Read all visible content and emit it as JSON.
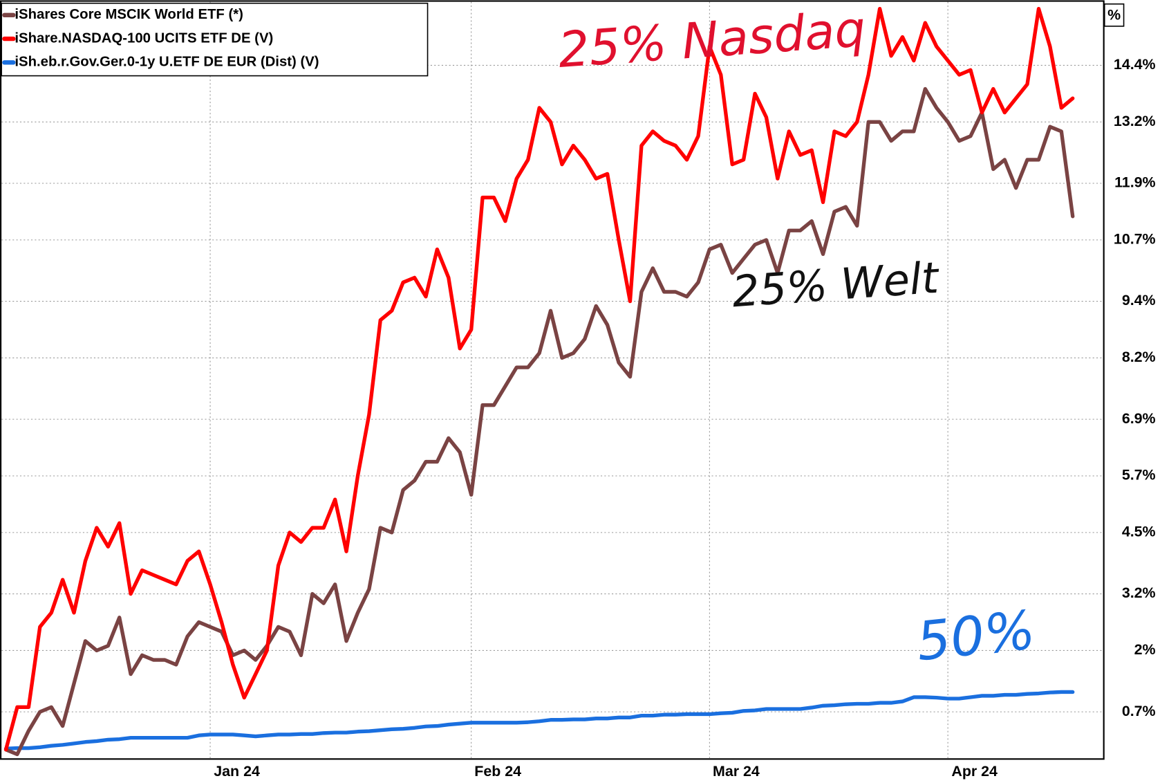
{
  "chart_data": {
    "type": "line",
    "y_axis_label": "%",
    "categories": [
      null,
      null,
      null,
      null,
      null,
      null,
      null,
      null,
      null,
      null,
      null,
      null,
      null,
      null,
      null,
      null,
      null,
      null,
      "Jan 24",
      null,
      null,
      null,
      null,
      null,
      null,
      null,
      null,
      null,
      null,
      null,
      null,
      null,
      null,
      null,
      null,
      null,
      null,
      null,
      null,
      null,
      null,
      "Feb 24",
      null,
      null,
      null,
      null,
      null,
      null,
      null,
      null,
      null,
      null,
      null,
      null,
      null,
      null,
      null,
      null,
      null,
      null,
      null,
      null,
      "Mar 24",
      null,
      null,
      null,
      null,
      null,
      null,
      null,
      null,
      null,
      null,
      null,
      null,
      null,
      null,
      null,
      null,
      null,
      null,
      null,
      null,
      "Apr 24",
      null,
      null,
      null,
      null,
      null,
      null,
      null,
      null,
      null,
      null,
      null
    ],
    "series": [
      {
        "name": "iShares Core MSCIK World ETF (*)",
        "color": "#7a4343",
        "values": [
          -0.1,
          -0.2,
          0.3,
          0.7,
          0.8,
          0.4,
          1.3,
          2.2,
          2.0,
          2.1,
          2.7,
          1.5,
          1.9,
          1.8,
          1.8,
          1.7,
          2.3,
          2.6,
          2.5,
          2.4,
          1.9,
          2.0,
          1.8,
          2.1,
          2.5,
          2.4,
          1.9,
          3.2,
          3.0,
          3.4,
          2.2,
          2.8,
          3.3,
          4.6,
          4.5,
          5.4,
          5.6,
          6.0,
          6.0,
          6.5,
          6.2,
          5.3,
          7.2,
          7.2,
          7.6,
          8.0,
          8.0,
          8.3,
          9.2,
          8.2,
          8.3,
          8.6,
          9.3,
          8.9,
          8.1,
          7.8,
          9.6,
          10.1,
          9.6,
          9.6,
          9.5,
          9.8,
          10.5,
          10.6,
          10.0,
          10.3,
          10.6,
          10.7,
          10.0,
          10.9,
          10.9,
          11.1,
          10.4,
          11.3,
          11.4,
          11.0,
          13.2,
          13.2,
          12.8,
          13.0,
          13.0,
          13.9,
          13.5,
          13.2,
          12.8,
          12.9,
          13.4,
          12.2,
          12.4,
          11.8,
          12.4,
          12.4,
          13.1,
          13.0,
          11.2
        ]
      },
      {
        "name": "iShare.NASDAQ-100 UCITS ETF DE (V)",
        "color": "#ff0000",
        "values": [
          -0.1,
          0.8,
          0.8,
          2.5,
          2.8,
          3.5,
          2.8,
          3.9,
          4.6,
          4.2,
          4.7,
          3.2,
          3.7,
          3.6,
          3.5,
          3.4,
          3.9,
          4.1,
          3.4,
          2.6,
          1.7,
          1.0,
          1.5,
          2.0,
          3.8,
          4.5,
          4.3,
          4.6,
          4.6,
          5.2,
          4.1,
          5.7,
          7.0,
          9.0,
          9.2,
          9.8,
          9.9,
          9.5,
          10.5,
          9.9,
          8.4,
          8.8,
          11.6,
          11.6,
          11.1,
          12.0,
          12.4,
          13.5,
          13.2,
          12.3,
          12.7,
          12.4,
          12.0,
          12.1,
          10.7,
          9.4,
          12.7,
          13.0,
          12.8,
          12.7,
          12.4,
          12.9,
          14.8,
          14.2,
          12.3,
          12.4,
          13.8,
          13.3,
          12.0,
          13.0,
          12.5,
          12.6,
          11.5,
          13.0,
          12.9,
          13.2,
          14.2,
          15.6,
          14.6,
          15.0,
          14.5,
          15.3,
          14.8,
          14.5,
          14.2,
          14.3,
          13.4,
          13.9,
          13.4,
          13.7,
          14.0,
          15.6,
          14.8,
          13.5,
          13.7
        ]
      },
      {
        "name": "iSh.eb.r.Gov.Ger.0-1y U.ETF DE EUR (Dist) (V)",
        "color": "#1a6fdf",
        "values": [
          -0.08,
          -0.07,
          -0.07,
          -0.05,
          -0.02,
          0.0,
          0.03,
          0.06,
          0.08,
          0.11,
          0.12,
          0.15,
          0.15,
          0.15,
          0.15,
          0.15,
          0.15,
          0.2,
          0.22,
          0.22,
          0.22,
          0.2,
          0.18,
          0.2,
          0.22,
          0.22,
          0.23,
          0.23,
          0.25,
          0.26,
          0.26,
          0.28,
          0.29,
          0.31,
          0.33,
          0.34,
          0.36,
          0.39,
          0.4,
          0.43,
          0.45,
          0.47,
          0.47,
          0.47,
          0.47,
          0.47,
          0.48,
          0.5,
          0.53,
          0.53,
          0.54,
          0.54,
          0.56,
          0.56,
          0.58,
          0.58,
          0.62,
          0.62,
          0.64,
          0.64,
          0.65,
          0.65,
          0.65,
          0.67,
          0.68,
          0.72,
          0.73,
          0.76,
          0.76,
          0.76,
          0.76,
          0.79,
          0.83,
          0.84,
          0.86,
          0.87,
          0.87,
          0.89,
          0.89,
          0.92,
          1.01,
          1.01,
          1.0,
          0.98,
          0.98,
          1.01,
          1.04,
          1.04,
          1.06,
          1.06,
          1.08,
          1.09,
          1.11,
          1.12,
          1.12
        ]
      }
    ],
    "ylim": [
      -0.3,
      15.7
    ],
    "yticks": [
      {
        "value": 0.7,
        "label": "0.7%"
      },
      {
        "value": 2,
        "label": "2%"
      },
      {
        "value": 3.2,
        "label": "3.2%"
      },
      {
        "value": 4.5,
        "label": "4.5%"
      },
      {
        "value": 5.7,
        "label": "5.7%"
      },
      {
        "value": 6.9,
        "label": "6.9%"
      },
      {
        "value": 8.2,
        "label": "8.2%"
      },
      {
        "value": 9.4,
        "label": "9.4%"
      },
      {
        "value": 10.7,
        "label": "10.7%"
      },
      {
        "value": 11.9,
        "label": "11.9%"
      },
      {
        "value": 13.2,
        "label": "13.2%"
      },
      {
        "value": 14.4,
        "label": "14.4%"
      }
    ],
    "grid": true,
    "legend_position": "upper left",
    "annotations": [
      {
        "text": "25% Nasdaq",
        "color": "#e0102e"
      },
      {
        "text": "25% Welt",
        "color": "#111111"
      },
      {
        "text": "50%",
        "color": "#1a6fdf"
      }
    ]
  }
}
